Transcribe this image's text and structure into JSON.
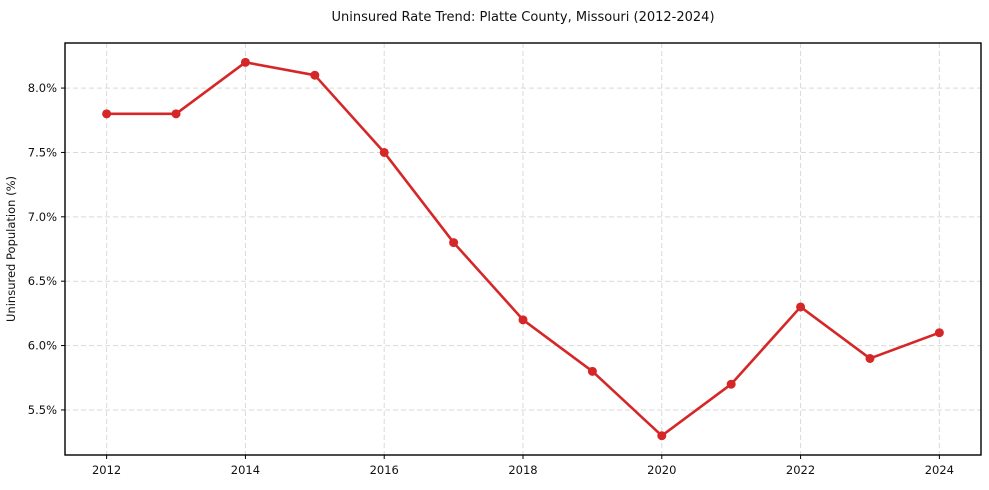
{
  "window": {
    "background": "#ffffff"
  },
  "chart_data": {
    "type": "line",
    "title": "Uninsured Rate Trend: Platte County, Missouri (2012-2024)",
    "xlabel": "",
    "ylabel": "Uninsured Population (%)",
    "x": [
      2012,
      2013,
      2014,
      2015,
      2016,
      2017,
      2018,
      2019,
      2020,
      2021,
      2022,
      2023,
      2024
    ],
    "values": [
      7.8,
      7.8,
      8.2,
      8.1,
      7.5,
      6.8,
      6.2,
      5.8,
      5.3,
      5.7,
      6.3,
      5.9,
      6.1
    ],
    "xticks": [
      2012,
      2014,
      2016,
      2018,
      2020,
      2022,
      2024
    ],
    "xtick_labels": [
      "2012",
      "2014",
      "2016",
      "2018",
      "2020",
      "2022",
      "2024"
    ],
    "yticks": [
      5.5,
      6.0,
      6.5,
      7.0,
      7.5,
      8.0
    ],
    "ytick_labels": [
      "5.5%",
      "6.0%",
      "6.5%",
      "7.0%",
      "7.5%",
      "8.0%"
    ],
    "xlim": [
      2011.4,
      2024.6
    ],
    "ylim": [
      5.15,
      8.35
    ],
    "grid": "dashed",
    "legend_position": "none",
    "marker": "circle",
    "colors": {
      "line": "#d62728",
      "marker": "#d62728",
      "grid": "#d9d9d9",
      "frame": "#000000",
      "text": "#111111",
      "background": "#ffffff"
    }
  }
}
